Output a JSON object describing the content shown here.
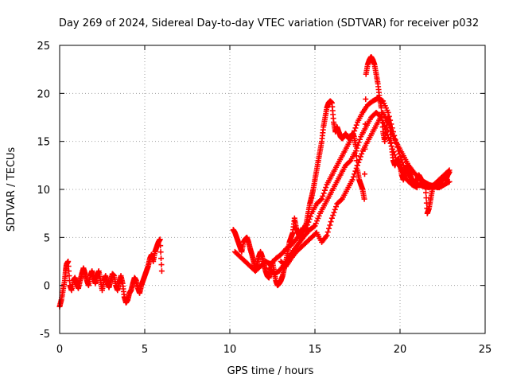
{
  "chart_data": {
    "type": "scatter",
    "title": "Day 269 of 2024, Sidereal Day-to-day VTEC variation (SDTVAR) for receiver p032",
    "xlabel": "GPS time / hours",
    "ylabel": "SDTVAR / TECUs",
    "xlim": [
      0,
      25
    ],
    "ylim": [
      -5,
      25
    ],
    "xticks": [
      0,
      5,
      10,
      15,
      20,
      25
    ],
    "yticks": [
      -5,
      0,
      5,
      10,
      15,
      20,
      25
    ],
    "grid": true,
    "marker": "+",
    "color": "#ff0000",
    "series": [
      {
        "name": "segment-1",
        "points": [
          [
            0.0,
            -2.2
          ],
          [
            0.1,
            -1.5
          ],
          [
            0.2,
            -0.5
          ],
          [
            0.3,
            0.5
          ],
          [
            0.35,
            1.5
          ],
          [
            0.4,
            2.2
          ],
          [
            0.5,
            2.5
          ],
          [
            0.6,
            0.0
          ],
          [
            0.7,
            -0.5
          ],
          [
            0.8,
            0.5
          ],
          [
            0.9,
            0.8
          ],
          [
            1.0,
            0.2
          ],
          [
            1.1,
            -0.3
          ],
          [
            1.2,
            0.5
          ],
          [
            1.3,
            1.2
          ],
          [
            1.4,
            1.8
          ],
          [
            1.5,
            1.2
          ],
          [
            1.6,
            0.5
          ],
          [
            1.7,
            0.0
          ],
          [
            1.8,
            1.0
          ],
          [
            1.9,
            1.5
          ],
          [
            2.0,
            0.8
          ],
          [
            2.1,
            0.2
          ],
          [
            2.2,
            1.0
          ],
          [
            2.3,
            1.5
          ],
          [
            2.4,
            0.5
          ],
          [
            2.5,
            -0.5
          ],
          [
            2.6,
            0.5
          ],
          [
            2.7,
            1.0
          ],
          [
            2.8,
            0.3
          ],
          [
            2.9,
            -0.2
          ],
          [
            3.0,
            0.5
          ],
          [
            3.1,
            1.2
          ],
          [
            3.2,
            1.0
          ],
          [
            3.3,
            0.0
          ],
          [
            3.4,
            -0.5
          ],
          [
            3.5,
            0.3
          ],
          [
            3.6,
            1.0
          ],
          [
            3.7,
            0.2
          ],
          [
            3.8,
            -1.2
          ],
          [
            3.9,
            -1.8
          ],
          [
            4.0,
            -1.5
          ],
          [
            4.1,
            -0.8
          ],
          [
            4.2,
            -0.5
          ],
          [
            4.3,
            0.2
          ],
          [
            4.4,
            0.8
          ],
          [
            4.5,
            0.5
          ],
          [
            4.6,
            -0.3
          ],
          [
            4.7,
            -0.8
          ],
          [
            4.8,
            0.0
          ],
          [
            4.9,
            0.5
          ],
          [
            5.0,
            1.0
          ],
          [
            5.1,
            1.5
          ],
          [
            5.2,
            2.0
          ],
          [
            5.3,
            2.8
          ],
          [
            5.4,
            3.2
          ],
          [
            5.5,
            2.5
          ],
          [
            5.6,
            3.5
          ],
          [
            5.7,
            4.0
          ],
          [
            5.8,
            4.5
          ],
          [
            5.9,
            4.8
          ],
          [
            6.0,
            1.5
          ]
        ]
      },
      {
        "name": "segment-2",
        "points": [
          [
            10.2,
            5.8
          ],
          [
            10.3,
            5.5
          ],
          [
            10.4,
            5.0
          ],
          [
            10.5,
            4.5
          ],
          [
            10.6,
            4.0
          ],
          [
            10.7,
            3.5
          ],
          [
            10.8,
            4.5
          ],
          [
            10.9,
            4.8
          ],
          [
            11.0,
            5.0
          ],
          [
            11.1,
            4.5
          ],
          [
            11.2,
            3.8
          ],
          [
            11.3,
            3.2
          ],
          [
            11.4,
            2.5
          ],
          [
            11.5,
            1.8
          ],
          [
            11.6,
            2.2
          ],
          [
            11.7,
            3.0
          ],
          [
            11.8,
            3.5
          ],
          [
            11.9,
            3.0
          ],
          [
            12.0,
            2.2
          ],
          [
            12.1,
            1.5
          ],
          [
            12.2,
            1.0
          ],
          [
            12.3,
            0.8
          ],
          [
            12.4,
            1.5
          ],
          [
            12.5,
            2.5
          ],
          [
            12.6,
            1.5
          ],
          [
            12.7,
            0.5
          ],
          [
            12.8,
            0.0
          ],
          [
            12.9,
            0.2
          ],
          [
            13.0,
            0.5
          ],
          [
            13.1,
            1.0
          ],
          [
            13.2,
            1.8
          ],
          [
            13.3,
            2.5
          ],
          [
            13.4,
            3.5
          ],
          [
            13.5,
            4.5
          ],
          [
            13.6,
            5.0
          ],
          [
            13.7,
            5.5
          ],
          [
            13.8,
            7.0
          ],
          [
            13.9,
            6.0
          ],
          [
            14.0,
            5.5
          ],
          [
            14.1,
            5.0
          ],
          [
            14.2,
            5.5
          ],
          [
            14.3,
            6.0
          ],
          [
            14.4,
            5.8
          ],
          [
            14.5,
            6.5
          ],
          [
            14.6,
            7.5
          ],
          [
            14.7,
            8.5
          ],
          [
            14.8,
            9.2
          ],
          [
            14.9,
            10.0
          ],
          [
            15.0,
            11.0
          ],
          [
            15.1,
            12.0
          ],
          [
            15.2,
            13.0
          ],
          [
            15.3,
            14.0
          ],
          [
            15.4,
            15.0
          ],
          [
            15.5,
            16.5
          ],
          [
            15.6,
            17.5
          ],
          [
            15.7,
            18.5
          ],
          [
            15.8,
            19.0
          ],
          [
            15.9,
            19.2
          ],
          [
            16.0,
            19.0
          ],
          [
            16.1,
            17.0
          ],
          [
            16.2,
            16.0
          ],
          [
            16.3,
            16.5
          ],
          [
            16.4,
            16.0
          ],
          [
            16.5,
            15.5
          ],
          [
            16.6,
            15.3
          ],
          [
            16.7,
            15.5
          ],
          [
            16.8,
            15.8
          ],
          [
            16.9,
            15.5
          ],
          [
            17.0,
            15.3
          ],
          [
            17.1,
            15.5
          ],
          [
            17.2,
            15.8
          ],
          [
            17.3,
            15.5
          ],
          [
            17.4,
            14.5
          ],
          [
            17.5,
            12.0
          ],
          [
            17.6,
            11.0
          ],
          [
            17.7,
            10.5
          ],
          [
            17.8,
            10.0
          ],
          [
            17.9,
            9.0
          ],
          [
            18.0,
            22.0
          ],
          [
            18.1,
            23.0
          ],
          [
            18.2,
            23.5
          ],
          [
            18.3,
            23.8
          ],
          [
            18.4,
            23.5
          ],
          [
            18.5,
            23.0
          ],
          [
            18.6,
            22.0
          ],
          [
            18.7,
            21.0
          ],
          [
            18.8,
            19.5
          ],
          [
            18.9,
            18.5
          ],
          [
            19.0,
            16.0
          ],
          [
            19.1,
            15.0
          ],
          [
            19.2,
            16.5
          ],
          [
            19.3,
            17.5
          ],
          [
            19.4,
            16.5
          ],
          [
            19.5,
            14.5
          ],
          [
            19.6,
            13.0
          ],
          [
            19.7,
            12.5
          ],
          [
            19.8,
            13.0
          ],
          [
            19.9,
            13.2
          ],
          [
            20.0,
            12.5
          ],
          [
            20.1,
            11.5
          ],
          [
            20.2,
            11.0
          ],
          [
            20.3,
            11.8
          ],
          [
            20.4,
            12.5
          ],
          [
            20.5,
            12.0
          ],
          [
            20.6,
            11.5
          ],
          [
            20.7,
            11.0
          ],
          [
            20.8,
            10.5
          ],
          [
            20.9,
            10.8
          ],
          [
            21.0,
            11.0
          ],
          [
            21.1,
            11.5
          ],
          [
            21.2,
            11.2
          ],
          [
            21.3,
            10.8
          ],
          [
            21.4,
            10.5
          ],
          [
            21.5,
            10.2
          ],
          [
            21.6,
            7.5
          ],
          [
            21.7,
            8.0
          ],
          [
            21.8,
            9.0
          ],
          [
            21.9,
            10.0
          ],
          [
            22.0,
            10.5
          ],
          [
            22.1,
            10.3
          ],
          [
            22.2,
            10.2
          ],
          [
            22.3,
            10.5
          ],
          [
            22.4,
            10.8
          ],
          [
            22.5,
            11.0
          ],
          [
            22.6,
            11.2
          ],
          [
            22.7,
            11.0
          ],
          [
            22.8,
            11.5
          ],
          [
            22.9,
            11.8
          ]
        ]
      },
      {
        "name": "segment-3",
        "points": [
          [
            10.3,
            3.5
          ],
          [
            10.6,
            3.0
          ],
          [
            10.9,
            2.5
          ],
          [
            11.2,
            2.0
          ],
          [
            11.5,
            1.5
          ],
          [
            11.8,
            2.0
          ],
          [
            12.1,
            2.5
          ],
          [
            12.4,
            2.2
          ],
          [
            12.7,
            2.8
          ],
          [
            13.0,
            3.2
          ],
          [
            13.3,
            3.8
          ],
          [
            13.6,
            4.2
          ],
          [
            13.9,
            4.8
          ],
          [
            14.2,
            5.5
          ],
          [
            14.5,
            6.0
          ],
          [
            14.8,
            7.5
          ],
          [
            15.1,
            8.5
          ],
          [
            15.4,
            9.0
          ],
          [
            15.7,
            10.5
          ],
          [
            16.0,
            11.5
          ],
          [
            16.3,
            12.5
          ],
          [
            16.6,
            13.5
          ],
          [
            16.9,
            14.5
          ],
          [
            17.2,
            15.5
          ],
          [
            17.5,
            17.0
          ],
          [
            17.8,
            18.0
          ],
          [
            18.1,
            18.8
          ],
          [
            18.4,
            19.2
          ],
          [
            18.7,
            19.5
          ],
          [
            19.0,
            19.2
          ],
          [
            19.3,
            18.0
          ],
          [
            19.6,
            16.0
          ],
          [
            19.9,
            14.0
          ],
          [
            20.2,
            12.5
          ],
          [
            20.5,
            11.5
          ],
          [
            20.8,
            10.8
          ],
          [
            21.1,
            10.5
          ],
          [
            21.4,
            10.3
          ],
          [
            21.7,
            10.2
          ],
          [
            22.0,
            10.5
          ],
          [
            22.3,
            11.0
          ],
          [
            22.6,
            11.5
          ],
          [
            22.9,
            12.0
          ]
        ]
      },
      {
        "name": "segment-4",
        "points": [
          [
            12.3,
            1.8
          ],
          [
            12.6,
            1.2
          ],
          [
            12.9,
            1.5
          ],
          [
            13.2,
            2.2
          ],
          [
            13.5,
            3.0
          ],
          [
            13.8,
            3.8
          ],
          [
            14.1,
            4.5
          ],
          [
            14.4,
            5.2
          ],
          [
            14.7,
            5.8
          ],
          [
            15.0,
            6.2
          ],
          [
            15.3,
            7.5
          ],
          [
            15.6,
            8.5
          ],
          [
            15.9,
            9.5
          ],
          [
            16.2,
            10.5
          ],
          [
            16.5,
            11.5
          ],
          [
            16.8,
            12.5
          ],
          [
            17.1,
            13.0
          ],
          [
            17.4,
            14.0
          ],
          [
            17.7,
            15.5
          ],
          [
            18.0,
            16.5
          ],
          [
            18.3,
            17.5
          ],
          [
            18.6,
            18.0
          ],
          [
            18.9,
            17.5
          ],
          [
            19.2,
            16.0
          ],
          [
            19.5,
            14.5
          ],
          [
            19.8,
            13.0
          ],
          [
            20.1,
            12.0
          ],
          [
            20.4,
            11.0
          ],
          [
            20.7,
            10.5
          ],
          [
            21.0,
            10.2
          ]
        ]
      },
      {
        "name": "segment-5",
        "points": [
          [
            13.0,
            2.5
          ],
          [
            13.3,
            2.0
          ],
          [
            13.6,
            2.8
          ],
          [
            13.9,
            3.5
          ],
          [
            14.2,
            4.0
          ],
          [
            14.5,
            4.5
          ],
          [
            14.8,
            5.0
          ],
          [
            15.1,
            5.5
          ],
          [
            15.4,
            4.5
          ],
          [
            15.7,
            5.2
          ],
          [
            16.0,
            7.0
          ],
          [
            16.3,
            8.5
          ],
          [
            16.6,
            9.0
          ],
          [
            16.9,
            10.0
          ],
          [
            17.2,
            11.0
          ],
          [
            17.5,
            12.5
          ],
          [
            17.8,
            14.0
          ],
          [
            18.1,
            15.0
          ],
          [
            18.4,
            16.0
          ],
          [
            18.7,
            17.0
          ],
          [
            19.0,
            18.0
          ],
          [
            19.3,
            17.0
          ],
          [
            19.6,
            15.5
          ],
          [
            19.9,
            14.5
          ],
          [
            20.2,
            13.5
          ],
          [
            20.5,
            12.5
          ],
          [
            20.8,
            11.8
          ],
          [
            21.1,
            11.2
          ],
          [
            21.4,
            10.8
          ],
          [
            21.7,
            10.5
          ],
          [
            22.0,
            10.3
          ],
          [
            22.3,
            10.2
          ],
          [
            22.6,
            10.5
          ],
          [
            22.9,
            10.8
          ]
        ]
      }
    ]
  }
}
